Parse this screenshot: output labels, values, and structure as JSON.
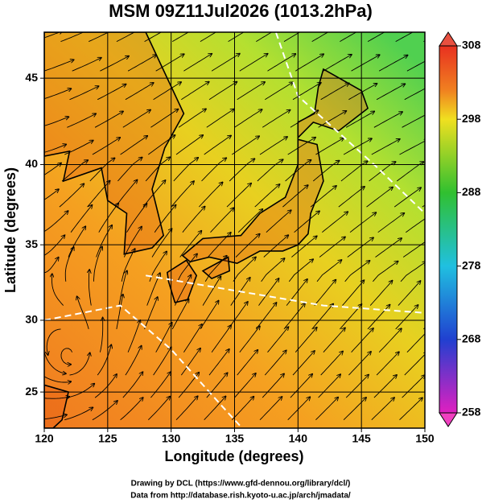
{
  "title": "MSM 09Z11Jul2026 (1013.2hPa)",
  "map": {
    "xlabel": "Longitude (degrees)",
    "ylabel": "Latitude  (degrees)",
    "projection": "mercator",
    "xlim": [
      120,
      150
    ],
    "ylim": [
      22.4,
      47.5
    ],
    "xticks": [
      120,
      125,
      130,
      135,
      140,
      145,
      150
    ],
    "yticks": [
      25,
      30,
      35,
      40,
      45
    ],
    "grid": true
  },
  "colorbar": {
    "range": [
      258,
      308
    ],
    "ticks": [
      258,
      268,
      278,
      288,
      298,
      308
    ]
  },
  "credits": [
    "Drawing by DCL (https://www.gfd-dennou.org/library/dcl/)",
    "Data from http://database.rish.kyoto-u.ac.jp/arch/jmadata/"
  ]
}
